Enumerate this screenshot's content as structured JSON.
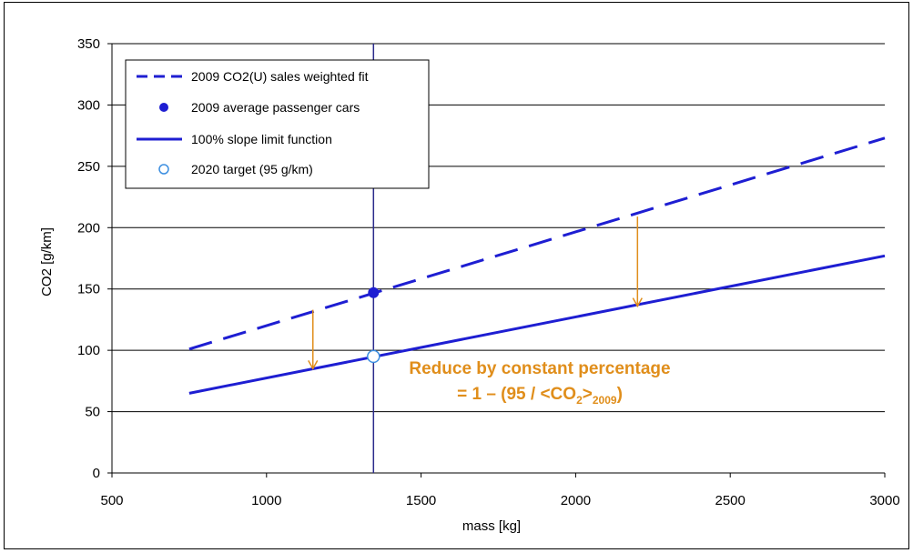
{
  "chart_data": {
    "type": "line",
    "xlabel": "mass [kg]",
    "ylabel": "CO2 [g/km]",
    "xlim": [
      500,
      3000
    ],
    "ylim": [
      0,
      350
    ],
    "x_ticks": [
      500,
      1000,
      1500,
      2000,
      2500,
      3000
    ],
    "y_ticks": [
      0,
      50,
      100,
      150,
      200,
      250,
      300,
      350
    ],
    "grid": "horizontal",
    "legend_position": "top-left",
    "colors": {
      "series": "#1e1ed2",
      "annotation": "#e08e1b"
    },
    "series": [
      {
        "name": "2009 CO2(U) sales weighted fit",
        "style": "dashed",
        "x": [
          750,
          3000
        ],
        "y": [
          101,
          273
        ]
      },
      {
        "name": "2009 average passenger cars",
        "style": "filled-marker",
        "x": [
          1346
        ],
        "y": [
          147
        ]
      },
      {
        "name": "100% slope limit function",
        "style": "solid",
        "x": [
          750,
          3000
        ],
        "y": [
          65,
          177
        ]
      },
      {
        "name": "2020 target (95 g/km)",
        "style": "open-marker",
        "x": [
          1346
        ],
        "y": [
          95
        ]
      }
    ],
    "reference_line": {
      "x": 1346
    },
    "arrows": [
      {
        "x": 1150,
        "y_from": 133,
        "y_to": 85
      },
      {
        "x": 2200,
        "y_from": 209,
        "y_to": 136
      }
    ],
    "annotation": {
      "line1": "Reduce by constant percentage",
      "line2_prefix": "= 1 – (95 / <CO",
      "line2_sub1": "2",
      "line2_mid": ">",
      "line2_sub2": "2009",
      "line2_suffix": ")"
    }
  }
}
